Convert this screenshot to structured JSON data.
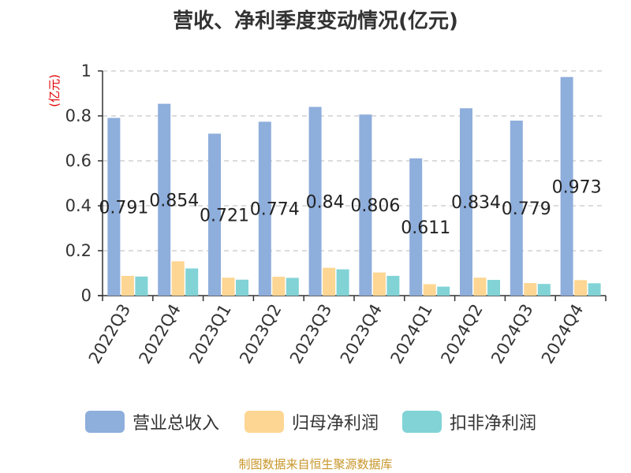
{
  "title": "营收、净利季度变动情况(亿元)",
  "source": "制图数据来自恒生聚源数据库",
  "chart_data": {
    "type": "bar",
    "title": "营收、净利季度变动情况(亿元)",
    "ylabel": "(亿元)",
    "ylim": [
      0,
      1
    ],
    "yticks": [
      "0",
      "0.2",
      "0.4",
      "0.6",
      "0.8",
      "1"
    ],
    "grid": true,
    "legend_position": "bottom",
    "categories": [
      "2022Q3",
      "2022Q4",
      "2023Q1",
      "2023Q2",
      "2023Q3",
      "2023Q4",
      "2024Q1",
      "2024Q2",
      "2024Q3",
      "2024Q4"
    ],
    "series": [
      {
        "name": "营业总收入",
        "color": "#8eaedc",
        "values": [
          0.791,
          0.854,
          0.721,
          0.774,
          0.84,
          0.806,
          0.611,
          0.834,
          0.779,
          0.973
        ],
        "labels": [
          "0.791",
          "0.854",
          "0.721",
          "0.774",
          "0.84",
          "0.806",
          "0.611",
          "0.834",
          "0.779",
          "0.973"
        ]
      },
      {
        "name": "归母净利润",
        "color": "#fdd693",
        "values": [
          0.088,
          0.153,
          0.08,
          0.084,
          0.124,
          0.103,
          0.051,
          0.08,
          0.056,
          0.069
        ]
      },
      {
        "name": "扣非净利润",
        "color": "#81d3d6",
        "values": [
          0.085,
          0.121,
          0.071,
          0.079,
          0.117,
          0.088,
          0.04,
          0.07,
          0.052,
          0.055
        ]
      }
    ]
  }
}
